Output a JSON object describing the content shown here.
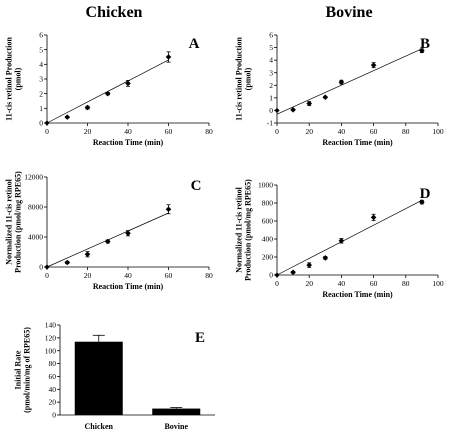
{
  "columns": [
    "Chicken",
    "Bovine"
  ],
  "colors": {
    "ink": "#000000",
    "background": "#ffffff"
  },
  "chart_data": [
    {
      "id": "A",
      "type": "scatter",
      "letter": "A",
      "xlabel": "Reaction Time (min)",
      "ylabel_lines": [
        "11-cis retinol Production",
        "(pmol)"
      ],
      "xlim": [
        0,
        80
      ],
      "ylim": [
        0,
        6
      ],
      "xticks": [
        0,
        20,
        40,
        60,
        80
      ],
      "yticks": [
        0,
        1,
        2,
        3,
        4,
        5,
        6
      ],
      "x": [
        10,
        20,
        30,
        40,
        60
      ],
      "y": [
        0.4,
        1.05,
        2.0,
        2.7,
        4.5
      ],
      "err": [
        0.05,
        0.1,
        0.08,
        0.2,
        0.35
      ],
      "fit": {
        "x": [
          0,
          60
        ],
        "y": [
          0,
          4.3
        ]
      }
    },
    {
      "id": "B",
      "type": "scatter",
      "letter": "B",
      "xlabel": "Reaction Time (min)",
      "ylabel_lines": [
        "11-cis retinol Production",
        "(pmol)"
      ],
      "xlim": [
        0,
        100
      ],
      "ylim": [
        -1,
        6
      ],
      "xticks": [
        0,
        20,
        40,
        60,
        80,
        100
      ],
      "yticks": [
        -1,
        0,
        1,
        2,
        3,
        4,
        5,
        6
      ],
      "x": [
        10,
        20,
        30,
        40,
        60,
        90
      ],
      "y": [
        0.05,
        0.55,
        1.05,
        2.25,
        3.6,
        4.75
      ],
      "err": [
        0.05,
        0.15,
        0.05,
        0.15,
        0.2,
        0.15
      ],
      "fit": {
        "x": [
          0,
          90
        ],
        "y": [
          -0.3,
          4.9
        ]
      }
    },
    {
      "id": "C",
      "type": "scatter",
      "letter": "C",
      "xlabel": "Reaction Time (min)",
      "ylabel_lines": [
        "Normalized 11-cis retinol",
        "Production (pmol/mg RPE65)"
      ],
      "xlim": [
        0,
        80
      ],
      "ylim": [
        0,
        12000
      ],
      "xticks": [
        0,
        20,
        40,
        60,
        80
      ],
      "yticks": [
        0,
        4000,
        8000,
        12000
      ],
      "x": [
        10,
        20,
        30,
        40,
        60
      ],
      "y": [
        600,
        1700,
        3400,
        4500,
        7700
      ],
      "err": [
        150,
        350,
        200,
        350,
        600
      ],
      "fit": {
        "x": [
          0,
          60
        ],
        "y": [
          0,
          7200
        ]
      }
    },
    {
      "id": "D",
      "type": "scatter",
      "letter": "D",
      "xlabel": "Reaction Time (min)",
      "ylabel_lines": [
        "Normalized 11-cis retinol",
        "Production (pmol/mg RPE65)"
      ],
      "xlim": [
        0,
        100
      ],
      "ylim": [
        0,
        1000
      ],
      "xticks": [
        0,
        20,
        40,
        60,
        80,
        100
      ],
      "yticks": [
        0,
        200,
        400,
        600,
        800,
        1000
      ],
      "x": [
        10,
        20,
        30,
        40,
        60,
        90
      ],
      "y": [
        30,
        110,
        190,
        380,
        640,
        810
      ],
      "err": [
        10,
        25,
        15,
        25,
        35,
        20
      ],
      "fit": {
        "x": [
          0,
          90
        ],
        "y": [
          0,
          830
        ]
      }
    },
    {
      "id": "E",
      "type": "bar",
      "letter": "E",
      "ylabel_lines": [
        "Initial Rate",
        "(pmol/min/mg of RPE65)"
      ],
      "categories": [
        "Chicken",
        "Bovine"
      ],
      "values": [
        114,
        10
      ],
      "err": [
        10,
        1.5
      ],
      "ylim": [
        0,
        140
      ],
      "yticks": [
        0,
        20,
        40,
        60,
        80,
        100,
        120,
        140
      ]
    }
  ]
}
